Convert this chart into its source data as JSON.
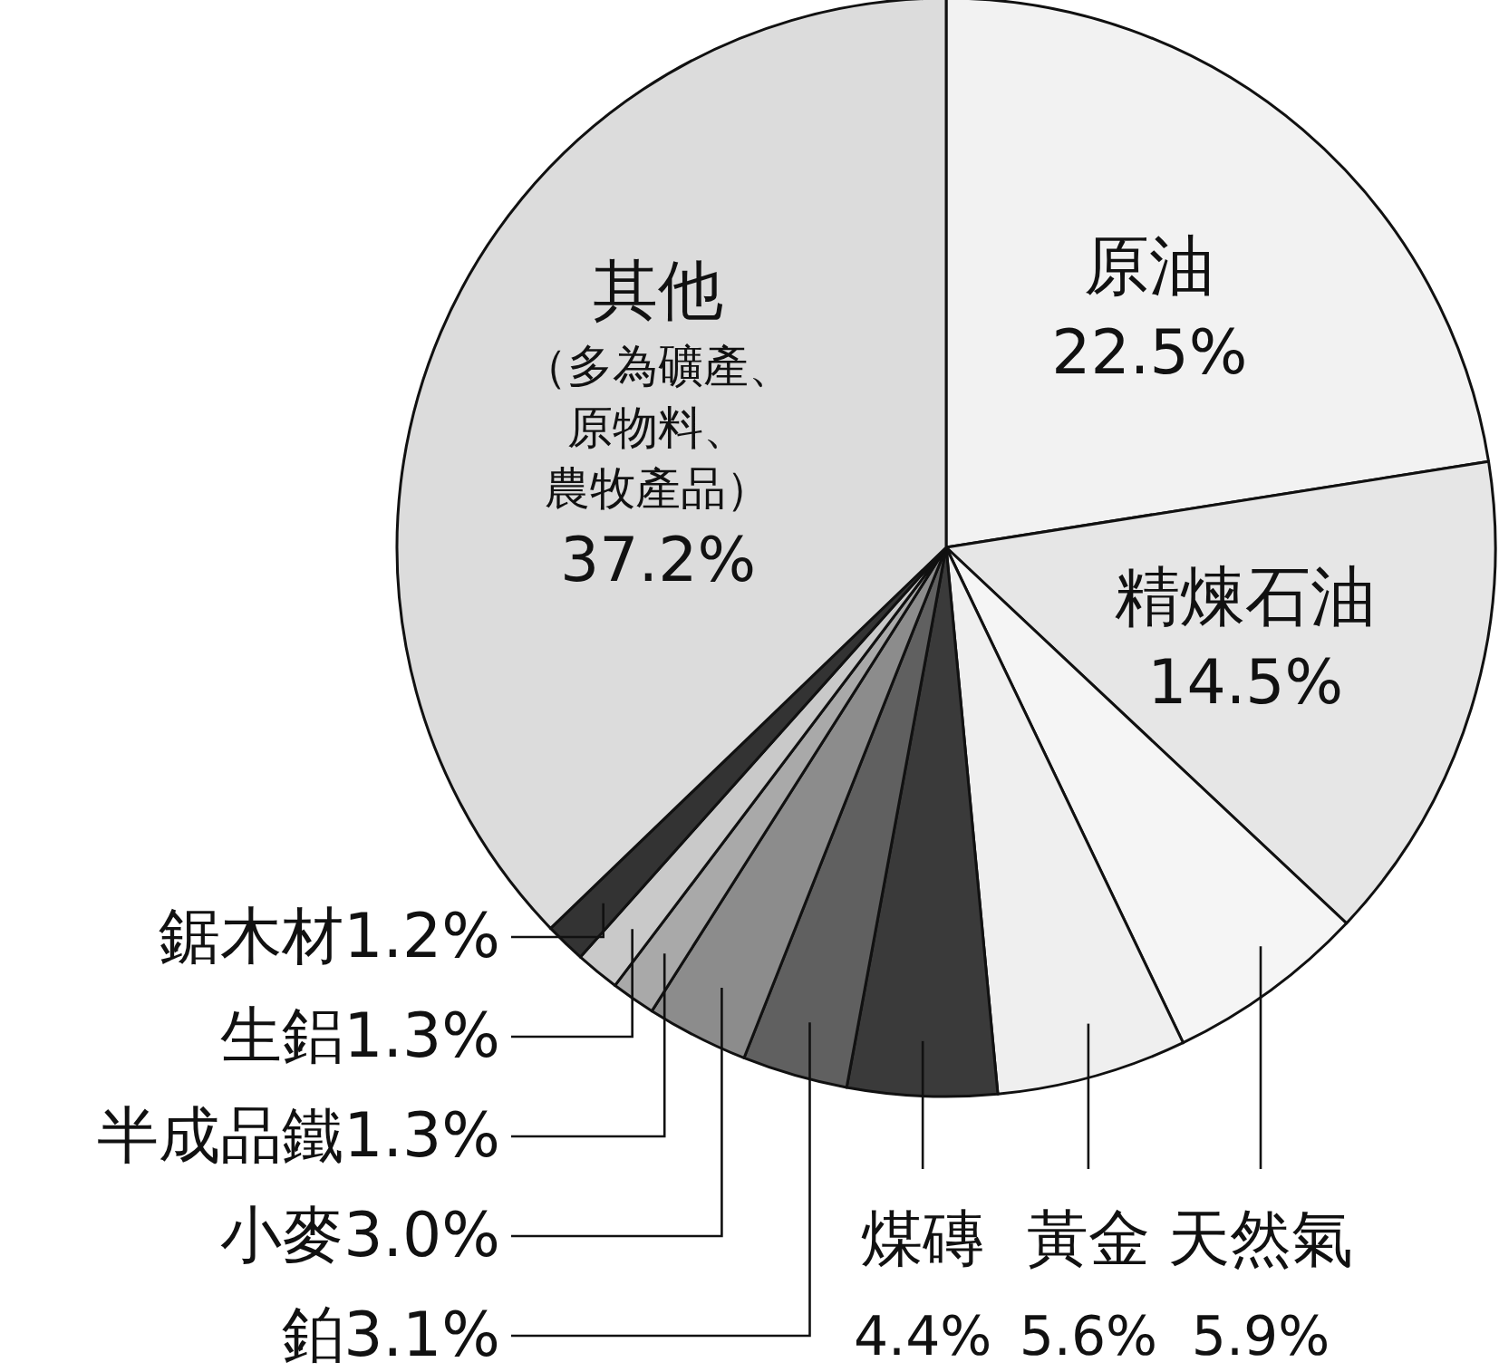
{
  "chart_data": {
    "type": "pie",
    "categories": [
      "原油",
      "精煉石油",
      "天然氣",
      "黃金",
      "煤磚",
      "鉑",
      "小麥",
      "半成品鐵",
      "生鋁",
      "鋸木材",
      "其他"
    ],
    "values": [
      22.5,
      14.5,
      5.9,
      5.6,
      4.4,
      3.1,
      3.0,
      1.3,
      1.3,
      1.2,
      37.2
    ],
    "value_labels": [
      "22.5%",
      "14.5%",
      "5.9%",
      "5.6%",
      "4.4%",
      "3.1%",
      "3.0%",
      "1.3%",
      "1.3%",
      "1.2%",
      "37.2%"
    ],
    "colors": [
      "#f2f2f2",
      "#e6e6e6",
      "#f5f5f5",
      "#efefef",
      "#3a3a3a",
      "#606060",
      "#8c8c8c",
      "#a9a9a9",
      "#c9c9c9",
      "#333333",
      "#dcdcdc"
    ],
    "annotations": [
      {
        "text": "（多為礦產、原物料、農牧產品）",
        "x": "其他"
      }
    ]
  }
}
